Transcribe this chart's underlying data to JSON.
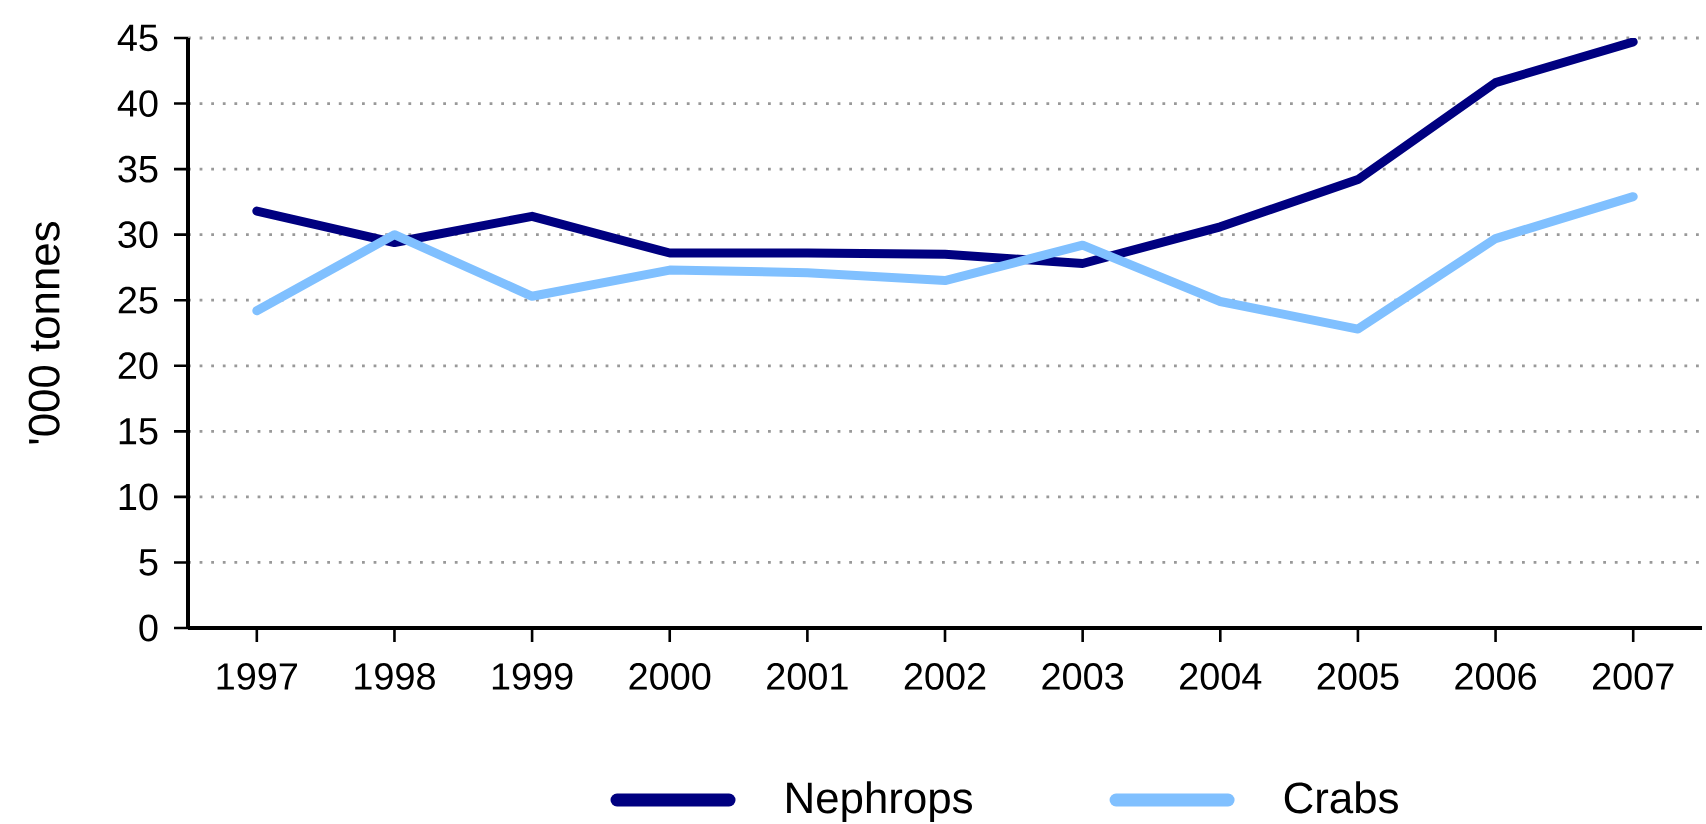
{
  "chart_data": {
    "type": "line",
    "ylabel": "'000 tonnes",
    "categories": [
      "1997",
      "1998",
      "1999",
      "2000",
      "2001",
      "2002",
      "2003",
      "2004",
      "2005",
      "2006",
      "2007"
    ],
    "series": [
      {
        "name": "Nephrops",
        "color": "#000080",
        "values": [
          31.8,
          29.4,
          31.4,
          28.6,
          28.6,
          28.5,
          27.8,
          30.6,
          34.2,
          41.6,
          44.7
        ]
      },
      {
        "name": "Crabs",
        "color": "#80c0ff",
        "values": [
          24.2,
          30.0,
          25.3,
          27.3,
          27.1,
          26.5,
          29.2,
          24.9,
          22.8,
          29.7,
          32.9
        ]
      }
    ],
    "ylim": [
      0,
      45
    ],
    "yticks": [
      0,
      5,
      10,
      15,
      20,
      25,
      30,
      35,
      40,
      45
    ],
    "grid": "y",
    "legend": "bottom"
  }
}
